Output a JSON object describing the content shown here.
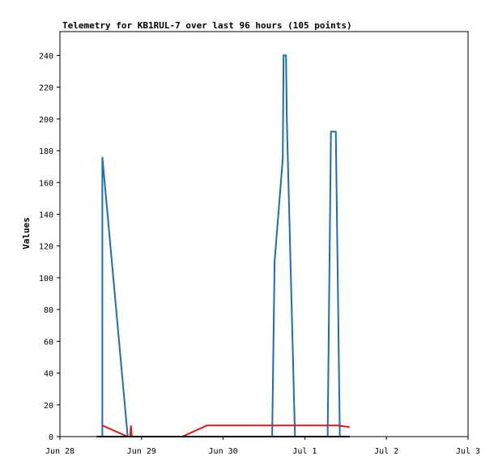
{
  "chart_data": {
    "type": "line",
    "title": "Telemetry for KB1RUL-7 over last 96 hours (105 points)",
    "xlabel": "",
    "ylabel": "Values",
    "x_ticks": [
      "Jun 28",
      "Jun 29",
      "Jun 30",
      "Jul 1",
      "Jul 2",
      "Jul 3"
    ],
    "x_range_days": [
      0,
      5
    ],
    "y_ticks": [
      0,
      20,
      40,
      60,
      80,
      100,
      120,
      140,
      160,
      180,
      200,
      220,
      240
    ],
    "ylim": [
      0,
      255
    ],
    "grid": false,
    "series": [
      {
        "color": "#1a6eb5",
        "points": [
          [
            0.45,
            0
          ],
          [
            0.52,
            0
          ],
          [
            0.52,
            176
          ],
          [
            0.83,
            0
          ],
          [
            1.5,
            0
          ],
          [
            2.3,
            0
          ],
          [
            2.43,
            0
          ],
          [
            2.43,
            0
          ],
          [
            2.45,
            0
          ],
          [
            2.5,
            0
          ],
          [
            2.53,
            0
          ],
          [
            2.57,
            0
          ],
          [
            2.6,
            0
          ],
          [
            2.6,
            0
          ],
          [
            2.55,
            0
          ],
          [
            2.6,
            0
          ],
          [
            2.6,
            0
          ],
          [
            2.6,
            0
          ],
          [
            2.6,
            0
          ],
          [
            2.6,
            0
          ],
          [
            2.55,
            0
          ],
          [
            2.6,
            0
          ],
          [
            2.6,
            0
          ],
          [
            2.6,
            0
          ],
          [
            2.6,
            0
          ],
          [
            2.6,
            0
          ],
          [
            2.6,
            0
          ],
          [
            2.6,
            0
          ],
          [
            2.6,
            0
          ],
          [
            2.6,
            0
          ],
          [
            2.6,
            0
          ],
          [
            2.6,
            0
          ],
          [
            2.6,
            0
          ],
          [
            2.6,
            0
          ],
          [
            2.6,
            0
          ],
          [
            2.6,
            0
          ],
          [
            2.6,
            0
          ],
          [
            2.6,
            0
          ],
          [
            2.6,
            0
          ],
          [
            2.6,
            0
          ],
          [
            2.6,
            0
          ],
          [
            2.6,
            0
          ],
          [
            2.6,
            0
          ],
          [
            2.6,
            0
          ],
          [
            2.6,
            0
          ],
          [
            2.6,
            0
          ],
          [
            2.6,
            0
          ],
          [
            2.6,
            0
          ],
          [
            2.6,
            0
          ],
          [
            2.6,
            0
          ],
          [
            2.6,
            0
          ],
          [
            2.6,
            0
          ],
          [
            2.6,
            0
          ],
          [
            2.6,
            0
          ],
          [
            2.6,
            0
          ],
          [
            2.6,
            0
          ],
          [
            2.6,
            0
          ],
          [
            2.6,
            0
          ],
          [
            2.6,
            0
          ],
          [
            2.6,
            0
          ],
          [
            2.6,
            0
          ],
          [
            2.6,
            0
          ],
          [
            2.6,
            0
          ],
          [
            2.6,
            0
          ],
          [
            2.6,
            0
          ],
          [
            2.6,
            0
          ],
          [
            2.6,
            0
          ],
          [
            2.6,
            0
          ],
          [
            2.6,
            0
          ],
          [
            2.6,
            0
          ],
          [
            2.6,
            0
          ],
          [
            2.6,
            0
          ],
          [
            2.6,
            0
          ],
          [
            2.6,
            0
          ],
          [
            2.6,
            0
          ],
          [
            2.6,
            0
          ],
          [
            2.6,
            0
          ],
          [
            2.6,
            0
          ],
          [
            2.6,
            0
          ],
          [
            2.6,
            0
          ],
          [
            2.6,
            0
          ],
          [
            2.6,
            0
          ],
          [
            2.6,
            0
          ],
          [
            2.6,
            0
          ],
          [
            2.6,
            0
          ],
          [
            2.6,
            0
          ],
          [
            2.6,
            0
          ],
          [
            2.6,
            0
          ],
          [
            2.6,
            0
          ],
          [
            2.6,
            0
          ],
          [
            2.6,
            0
          ],
          [
            2.6,
            0
          ],
          [
            2.6,
            0
          ],
          [
            2.6,
            0
          ],
          [
            2.6,
            0
          ],
          [
            2.63,
            110
          ],
          [
            2.73,
            175
          ],
          [
            2.74,
            240
          ],
          [
            2.77,
            240
          ],
          [
            2.78,
            200
          ],
          [
            2.88,
            0
          ],
          [
            3.28,
            0
          ],
          [
            3.28,
            0
          ],
          [
            3.32,
            192
          ],
          [
            3.38,
            192
          ],
          [
            3.43,
            0
          ],
          [
            3.5,
            0
          ]
        ]
      },
      {
        "color": "#e01818",
        "points": [
          [
            0.52,
            7
          ],
          [
            0.83,
            0
          ],
          [
            0.86,
            0
          ],
          [
            0.87,
            7
          ],
          [
            0.88,
            0
          ],
          [
            0.9,
            0
          ],
          [
            1.5,
            0
          ],
          [
            1.8,
            7
          ],
          [
            3.4,
            7
          ],
          [
            3.55,
            6
          ]
        ]
      },
      {
        "color": "#000000",
        "points": [
          [
            0.45,
            0
          ],
          [
            3.55,
            0
          ]
        ]
      }
    ]
  }
}
